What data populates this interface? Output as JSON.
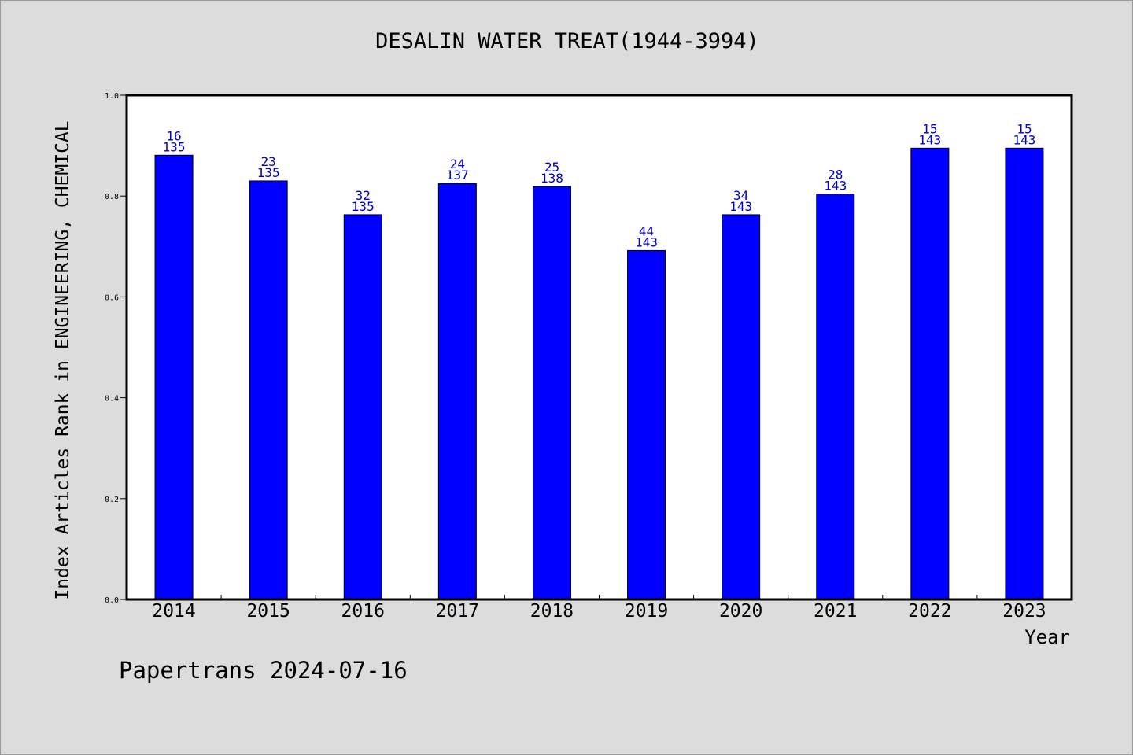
{
  "chart_data": {
    "type": "bar",
    "title": "DESALIN WATER TREAT(1944-3994)",
    "xlabel": "Year",
    "ylabel": "Index Articles Rank in ENGINEERING, CHEMICAL",
    "ylim": [
      0,
      1
    ],
    "yticks": [
      "0.0",
      "0.2",
      "0.4",
      "0.6",
      "0.8",
      "1.0"
    ],
    "grid": false,
    "categories": [
      "2014",
      "2015",
      "2016",
      "2017",
      "2018",
      "2019",
      "2020",
      "2021",
      "2022",
      "2023"
    ],
    "values": [
      0.881,
      0.83,
      0.763,
      0.825,
      0.819,
      0.692,
      0.763,
      0.804,
      0.895,
      0.895
    ],
    "ranks": [
      "16",
      "23",
      "32",
      "24",
      "25",
      "44",
      "34",
      "28",
      "15",
      "15"
    ],
    "totals": [
      "135",
      "135",
      "135",
      "137",
      "138",
      "143",
      "143",
      "143",
      "143",
      "143"
    ],
    "bar_color": "#0000ff",
    "label_color": "#0000cc"
  },
  "footer": {
    "text": "Papertrans 2024-07-16"
  }
}
